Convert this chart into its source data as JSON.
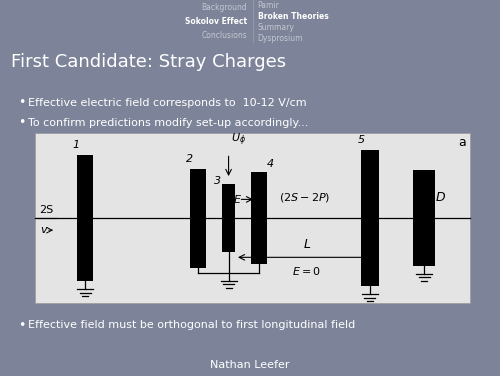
{
  "bg_header_color": "#3d4d7a",
  "bg_nav_color": "#3a4870",
  "bg_main_color": "#7d8499",
  "slide_title": "First Candidate: Stray Charges",
  "nav_left": [
    "Background",
    "Sokolov Effect",
    "Conclusions"
  ],
  "nav_right": [
    "Pamir",
    "Broken Theories",
    "Summary",
    "Dysprosium"
  ],
  "bullet1": "Effective electric field corresponds to  10-12 V/cm",
  "bullet2": "To confirm predictions modify set-up accordingly...",
  "bullet3": "Effective field must be orthogonal to first longitudinal field",
  "footer": "Nathan Leefer",
  "figsize": [
    5.0,
    3.76
  ],
  "dpi": 100
}
